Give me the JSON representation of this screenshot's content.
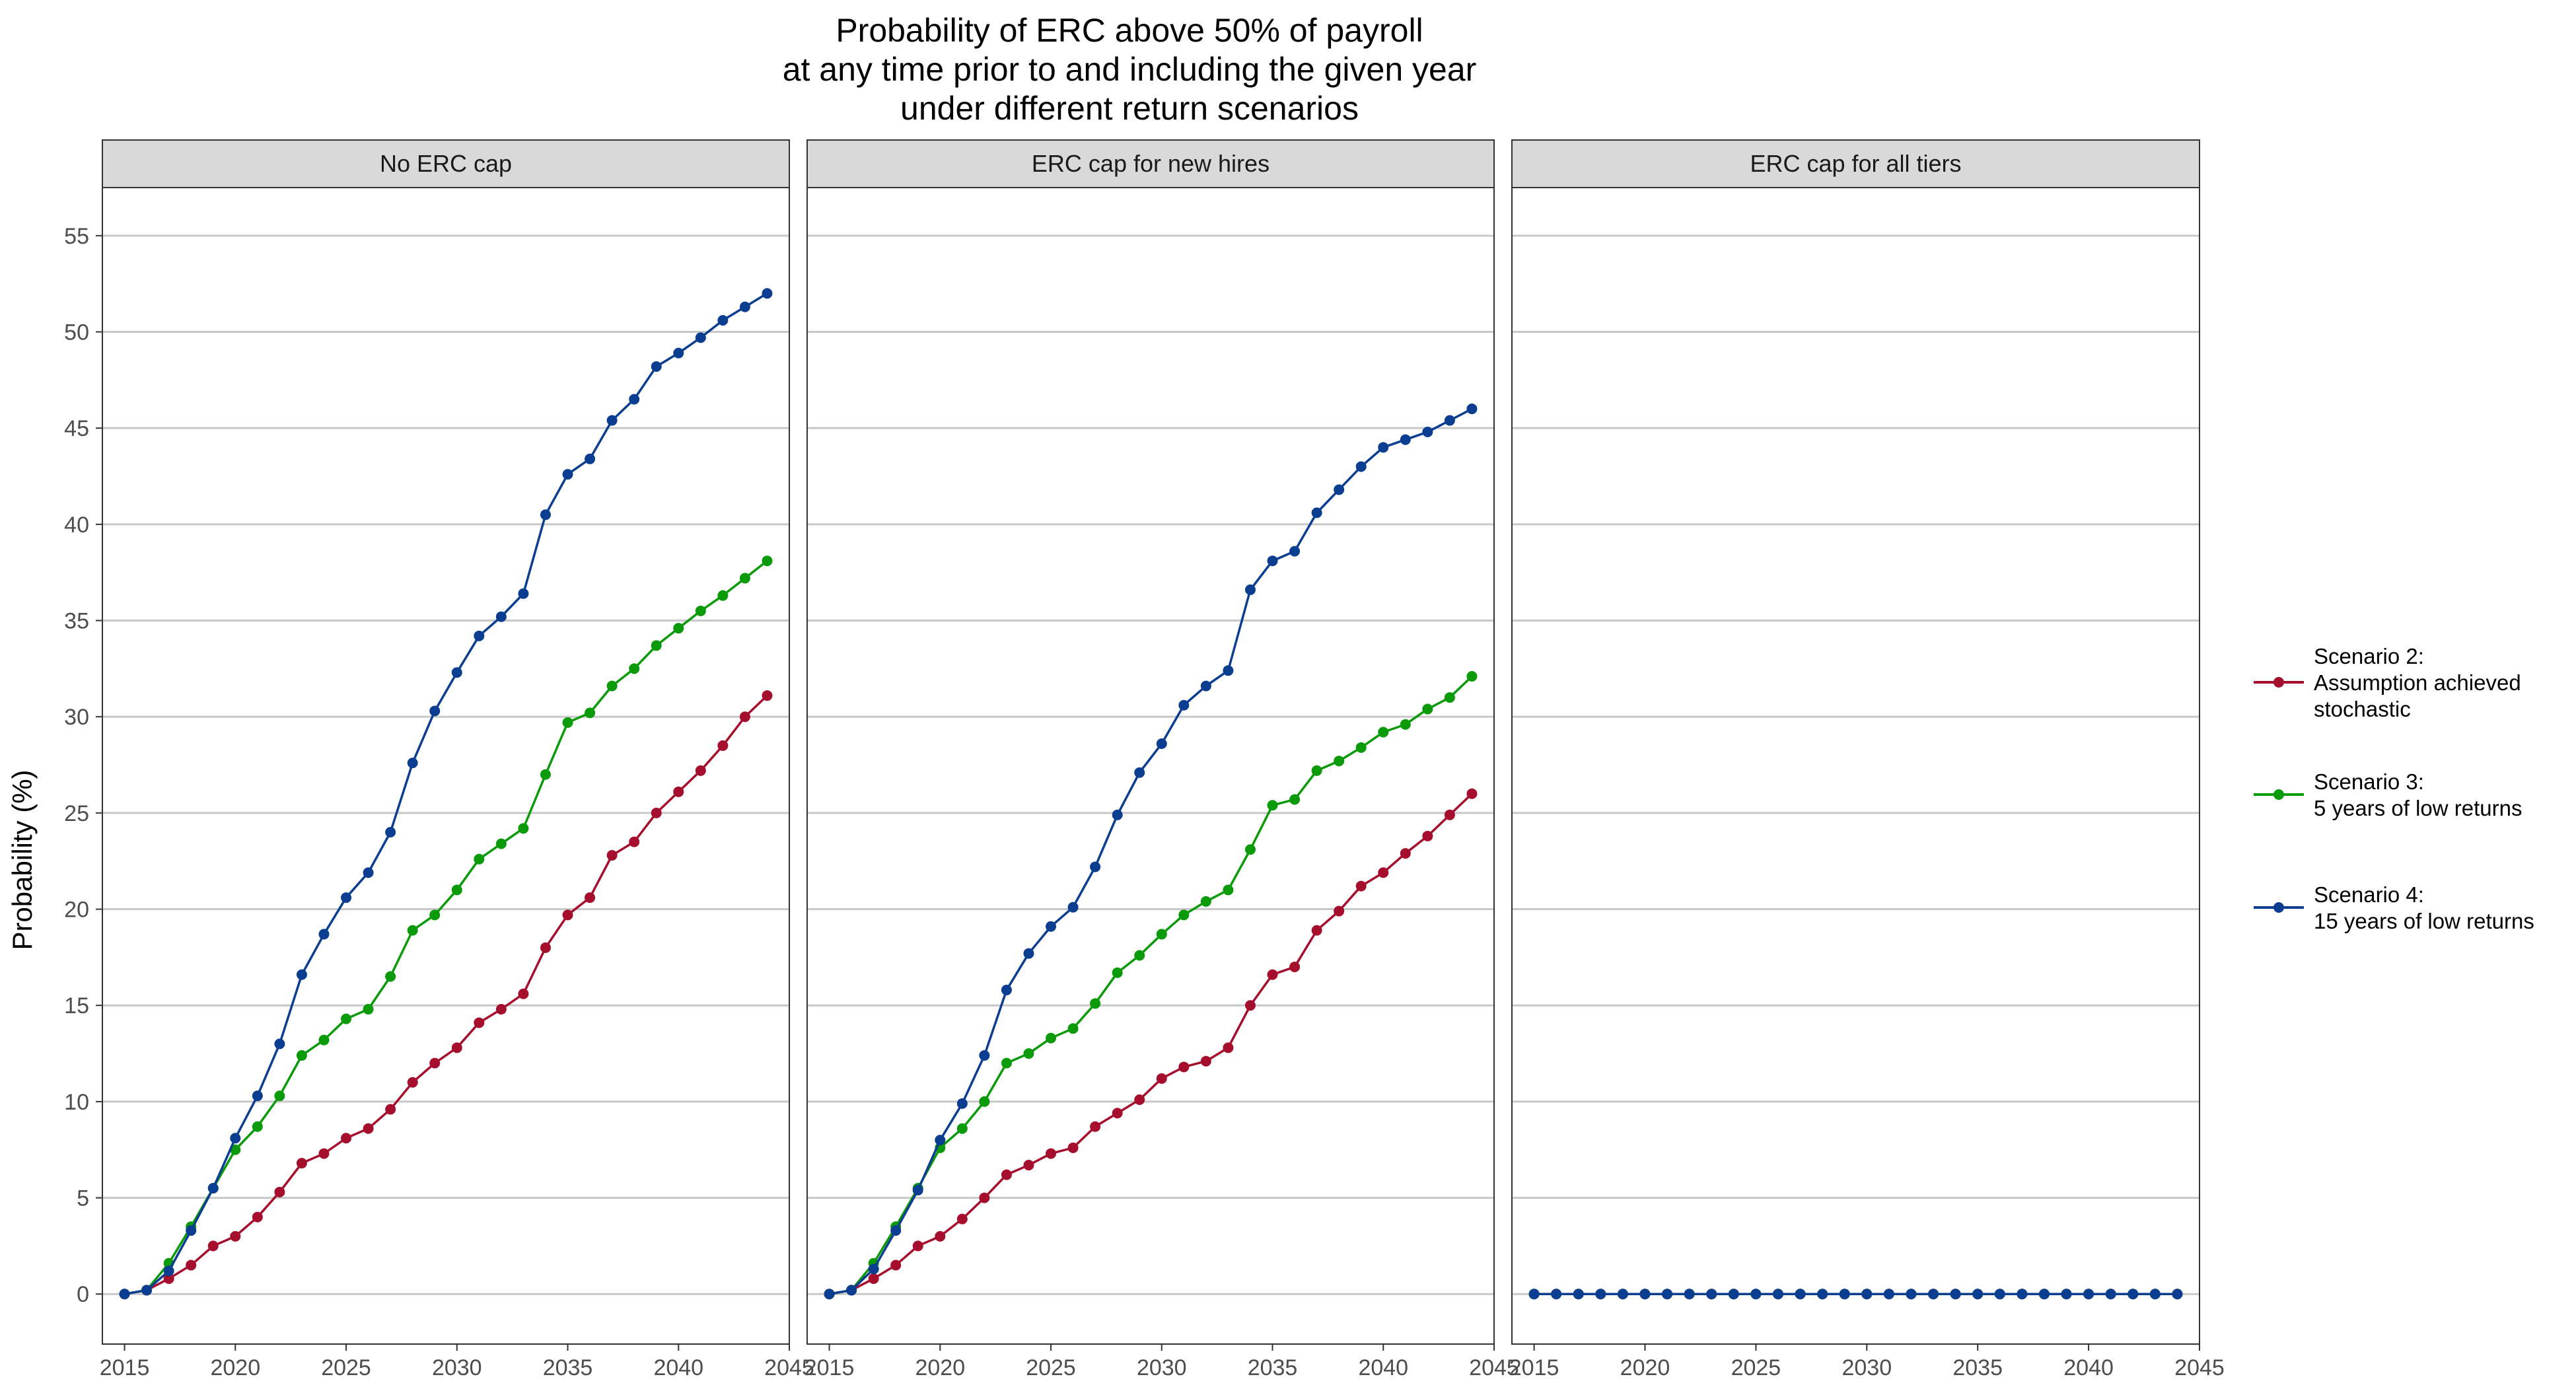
{
  "chart_data": {
    "type": "line",
    "title": [
      "Probability of ERC above 50% of payroll",
      "at any time prior to and including the given year",
      "under different return scenarios"
    ],
    "ylabel": "Probability (%)",
    "xlabel": "",
    "xlim": [
      2014,
      2045
    ],
    "ylim": [
      -2.6,
      57.5
    ],
    "x_ticks": [
      2015,
      2020,
      2025,
      2030,
      2035,
      2040,
      2045
    ],
    "y_ticks": [
      0,
      5,
      10,
      15,
      20,
      25,
      30,
      35,
      40,
      45,
      50,
      55
    ],
    "grid": "horizontal",
    "legend_position": "right",
    "x": [
      2015,
      2016,
      2017,
      2018,
      2019,
      2020,
      2021,
      2022,
      2023,
      2024,
      2025,
      2026,
      2027,
      2028,
      2029,
      2030,
      2031,
      2032,
      2033,
      2034,
      2035,
      2036,
      2037,
      2038,
      2039,
      2040,
      2041,
      2042,
      2043,
      2044
    ],
    "series_meta": [
      {
        "key": "s2",
        "name_lines": [
          "Scenario 2:",
          "Assumption achieved",
          "stochastic"
        ],
        "color": "#a50f2d"
      },
      {
        "key": "s3",
        "name_lines": [
          "Scenario 3:",
          "5 years of low returns"
        ],
        "color": "#0a9a0a"
      },
      {
        "key": "s4",
        "name_lines": [
          "Scenario 4:",
          "15 years of low returns"
        ],
        "color": "#0b3d91"
      }
    ],
    "panels": [
      {
        "label": "No ERC cap",
        "series": [
          {
            "key": "s2",
            "values": [
              0,
              0.2,
              0.8,
              1.5,
              2.5,
              3.0,
              4.0,
              5.3,
              6.8,
              7.3,
              8.1,
              8.6,
              9.6,
              11.0,
              12.0,
              12.8,
              14.1,
              14.8,
              15.6,
              18.0,
              19.7,
              20.6,
              22.8,
              23.5,
              25.0,
              26.1,
              27.2,
              28.5,
              30.0,
              31.1
            ]
          },
          {
            "key": "s3",
            "values": [
              0,
              0.2,
              1.6,
              3.5,
              5.5,
              7.5,
              8.7,
              10.3,
              12.4,
              13.2,
              14.3,
              14.8,
              16.5,
              18.9,
              19.7,
              21.0,
              22.6,
              23.4,
              24.2,
              27.0,
              29.7,
              30.2,
              31.6,
              32.5,
              33.7,
              34.6,
              35.5,
              36.3,
              37.2,
              38.1
            ]
          },
          {
            "key": "s4",
            "values": [
              0,
              0.2,
              1.2,
              3.3,
              5.5,
              8.1,
              10.3,
              13.0,
              16.6,
              18.7,
              20.6,
              21.9,
              24.0,
              27.6,
              30.3,
              32.3,
              34.2,
              35.2,
              36.4,
              40.5,
              42.6,
              43.4,
              45.4,
              46.5,
              48.2,
              48.9,
              49.7,
              50.6,
              51.3,
              52.0
            ]
          }
        ]
      },
      {
        "label": "ERC cap for new hires",
        "series": [
          {
            "key": "s2",
            "values": [
              0,
              0.2,
              0.8,
              1.5,
              2.5,
              3.0,
              3.9,
              5.0,
              6.2,
              6.7,
              7.3,
              7.6,
              8.7,
              9.4,
              10.1,
              11.2,
              11.8,
              12.1,
              12.8,
              15.0,
              16.6,
              17.0,
              18.9,
              19.9,
              21.2,
              21.9,
              22.9,
              23.8,
              24.9,
              26.0
            ]
          },
          {
            "key": "s3",
            "values": [
              0,
              0.2,
              1.6,
              3.5,
              5.5,
              7.6,
              8.6,
              10.0,
              12.0,
              12.5,
              13.3,
              13.8,
              15.1,
              16.7,
              17.6,
              18.7,
              19.7,
              20.4,
              21.0,
              23.1,
              25.4,
              25.7,
              27.2,
              27.7,
              28.4,
              29.2,
              29.6,
              30.4,
              31.0,
              32.1
            ]
          },
          {
            "key": "s4",
            "values": [
              0,
              0.2,
              1.3,
              3.3,
              5.4,
              8.0,
              9.9,
              12.4,
              15.8,
              17.7,
              19.1,
              20.1,
              22.2,
              24.9,
              27.1,
              28.6,
              30.6,
              31.6,
              32.4,
              36.6,
              38.1,
              38.6,
              40.6,
              41.8,
              43.0,
              44.0,
              44.4,
              44.8,
              45.4,
              46.0
            ]
          }
        ]
      },
      {
        "label": "ERC cap for all tiers",
        "series": [
          {
            "key": "s2",
            "values": [
              0,
              0,
              0,
              0,
              0,
              0,
              0,
              0,
              0,
              0,
              0,
              0,
              0,
              0,
              0,
              0,
              0,
              0,
              0,
              0,
              0,
              0,
              0,
              0,
              0,
              0,
              0,
              0,
              0,
              0
            ]
          },
          {
            "key": "s3",
            "values": [
              0,
              0,
              0,
              0,
              0,
              0,
              0,
              0,
              0,
              0,
              0,
              0,
              0,
              0,
              0,
              0,
              0,
              0,
              0,
              0,
              0,
              0,
              0,
              0,
              0,
              0,
              0,
              0,
              0,
              0
            ]
          },
          {
            "key": "s4",
            "values": [
              0,
              0,
              0,
              0,
              0,
              0,
              0,
              0,
              0,
              0,
              0,
              0,
              0,
              0,
              0,
              0,
              0,
              0,
              0,
              0,
              0,
              0,
              0,
              0,
              0,
              0,
              0,
              0,
              0,
              0
            ]
          }
        ]
      }
    ]
  }
}
